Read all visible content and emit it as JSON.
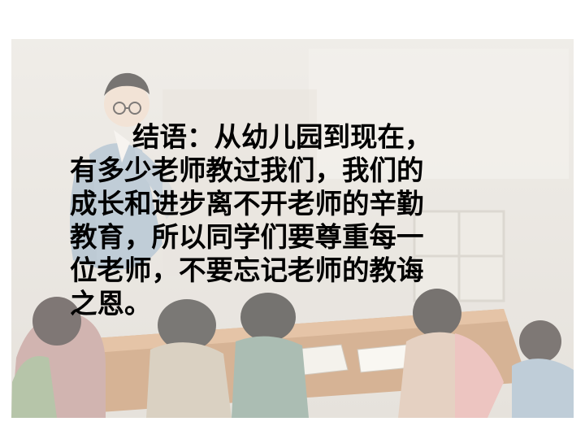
{
  "slide": {
    "background": "#ffffff",
    "text_color": "#000000",
    "lines": [
      "结语：从幼儿园到现在，",
      "有多少老师教过我们，我们的",
      "成长和进步离不开老师的辛勤",
      "教育，所以同学们要尊重每一",
      "位老师，不要忘记老师的教诲",
      "之恩。"
    ]
  }
}
